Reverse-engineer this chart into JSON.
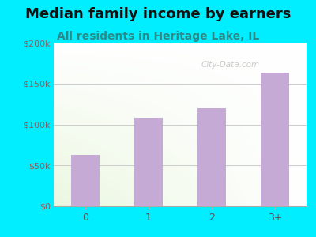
{
  "title": "Median family income by earners",
  "subtitle": "All residents in Heritage Lake, IL",
  "categories": [
    "0",
    "1",
    "2",
    "3+"
  ],
  "values": [
    63000,
    108000,
    120000,
    163000
  ],
  "bar_color": "#c4aad4",
  "background_outer": "#00eeff",
  "ylim": [
    0,
    200000
  ],
  "yticks": [
    0,
    50000,
    100000,
    150000,
    200000
  ],
  "ytick_labels": [
    "$0",
    "$50k",
    "$100k",
    "$150k",
    "$200k"
  ],
  "title_fontsize": 13,
  "subtitle_fontsize": 10,
  "watermark": "City-Data.com",
  "grid_color": "#cccccc",
  "ytick_color": "#8B6060",
  "xtick_color": "#555555",
  "subtitle_color": "#2a8a8a",
  "title_color": "#111111"
}
